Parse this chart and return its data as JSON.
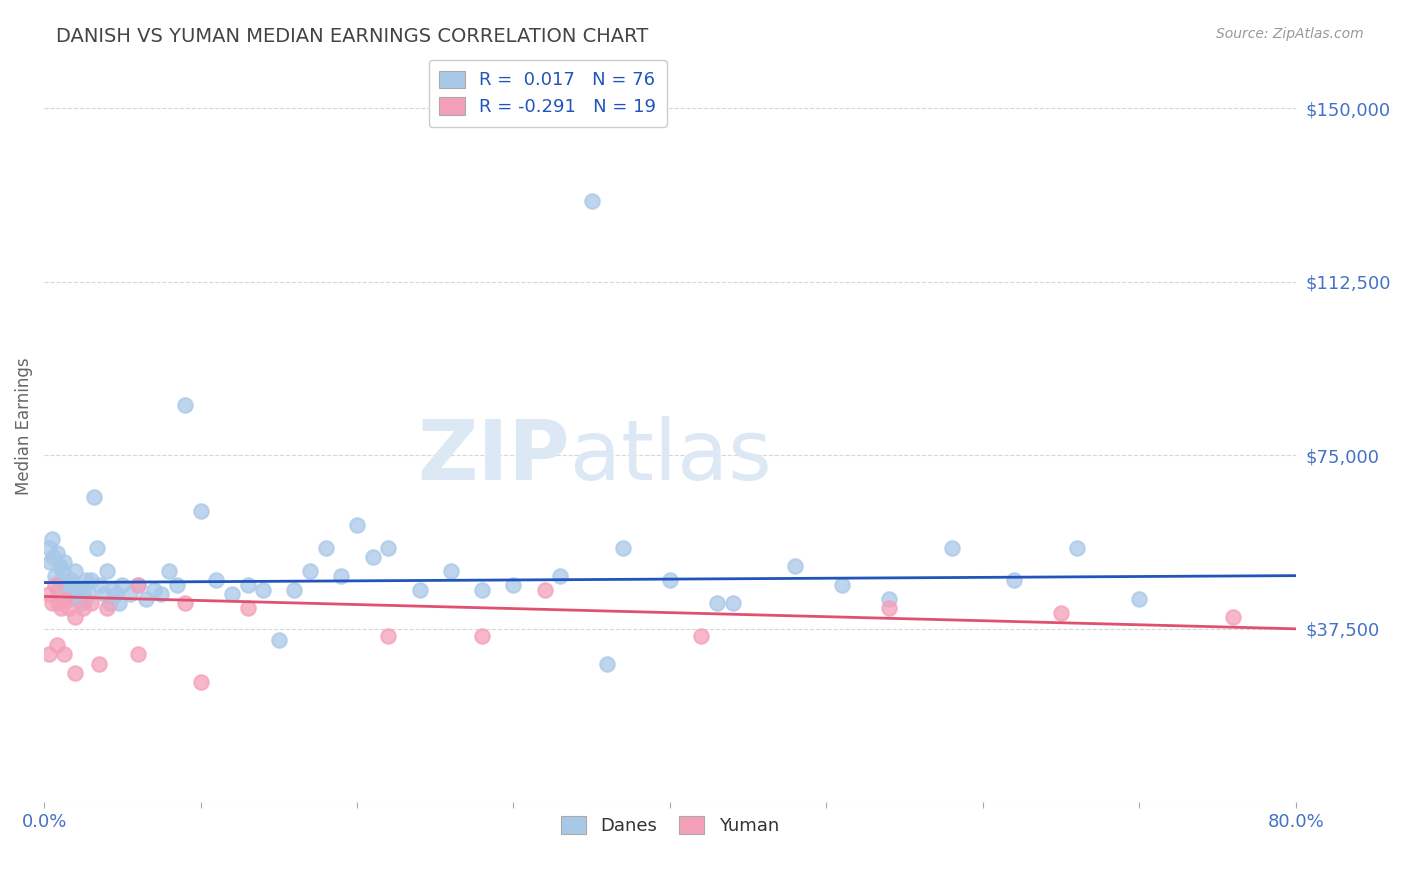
{
  "title": "DANISH VS YUMAN MEDIAN EARNINGS CORRELATION CHART",
  "source": "Source: ZipAtlas.com",
  "ylabel": "Median Earnings",
  "xlim": [
    0.0,
    0.8
  ],
  "ylim": [
    0,
    162500
  ],
  "yticks": [
    0,
    37500,
    75000,
    112500,
    150000
  ],
  "ytick_labels": [
    "",
    "$37,500",
    "$75,000",
    "$112,500",
    "$150,000"
  ],
  "xticks": [
    0.0,
    0.1,
    0.2,
    0.3,
    0.4,
    0.5,
    0.6,
    0.7,
    0.8
  ],
  "xtick_labels": [
    "0.0%",
    "",
    "",
    "",
    "",
    "",
    "",
    "",
    "80.0%"
  ],
  "danes_color": "#a8c8e8",
  "yuman_color": "#f4a0b8",
  "danes_line_color": "#2255bb",
  "yuman_line_color": "#e05070",
  "danes_R": 0.017,
  "danes_N": 76,
  "yuman_R": -0.291,
  "yuman_N": 19,
  "legend_danes_label": "Danes",
  "legend_yuman_label": "Yuman",
  "background_color": "#ffffff",
  "grid_color": "#cccccc",
  "title_color": "#444444",
  "tick_color": "#4472c4",
  "danes_scatter_x": [
    0.003,
    0.004,
    0.005,
    0.006,
    0.007,
    0.008,
    0.009,
    0.01,
    0.011,
    0.012,
    0.013,
    0.014,
    0.015,
    0.016,
    0.017,
    0.018,
    0.019,
    0.02,
    0.021,
    0.022,
    0.023,
    0.024,
    0.025,
    0.026,
    0.027,
    0.028,
    0.03,
    0.032,
    0.034,
    0.036,
    0.038,
    0.04,
    0.042,
    0.044,
    0.046,
    0.048,
    0.05,
    0.055,
    0.06,
    0.065,
    0.07,
    0.075,
    0.08,
    0.085,
    0.09,
    0.1,
    0.11,
    0.12,
    0.13,
    0.14,
    0.15,
    0.16,
    0.17,
    0.18,
    0.19,
    0.2,
    0.21,
    0.22,
    0.24,
    0.26,
    0.28,
    0.3,
    0.33,
    0.36,
    0.4,
    0.44,
    0.48,
    0.51,
    0.54,
    0.58,
    0.62,
    0.66,
    0.7,
    0.37,
    0.43,
    0.35
  ],
  "danes_scatter_y": [
    55000,
    52000,
    57000,
    53000,
    49000,
    54000,
    46000,
    51000,
    48000,
    50000,
    52000,
    47000,
    46000,
    44000,
    48000,
    45000,
    47000,
    50000,
    44000,
    46000,
    45000,
    43000,
    46000,
    44000,
    48000,
    45000,
    48000,
    66000,
    55000,
    47000,
    45000,
    50000,
    43000,
    46000,
    45000,
    43000,
    47000,
    45000,
    47000,
    44000,
    46000,
    45000,
    50000,
    47000,
    86000,
    63000,
    48000,
    45000,
    47000,
    46000,
    35000,
    46000,
    50000,
    55000,
    49000,
    60000,
    53000,
    55000,
    46000,
    50000,
    46000,
    47000,
    49000,
    30000,
    48000,
    43000,
    51000,
    47000,
    44000,
    55000,
    48000,
    55000,
    44000,
    55000,
    43000,
    130000
  ],
  "yuman_scatter_x": [
    0.003,
    0.005,
    0.007,
    0.009,
    0.011,
    0.013,
    0.016,
    0.02,
    0.025,
    0.03,
    0.04,
    0.06,
    0.09,
    0.13,
    0.32,
    0.42,
    0.54,
    0.65,
    0.76
  ],
  "yuman_scatter_y": [
    45000,
    43000,
    47000,
    43000,
    42000,
    44000,
    42000,
    40000,
    42000,
    43000,
    42000,
    47000,
    43000,
    42000,
    46000,
    36000,
    42000,
    41000,
    40000
  ],
  "yuman_low_x": [
    0.003,
    0.008,
    0.013,
    0.02,
    0.035,
    0.06,
    0.1,
    0.22,
    0.28
  ],
  "yuman_low_y": [
    32000,
    34000,
    32000,
    28000,
    30000,
    32000,
    26000,
    36000,
    36000
  ]
}
